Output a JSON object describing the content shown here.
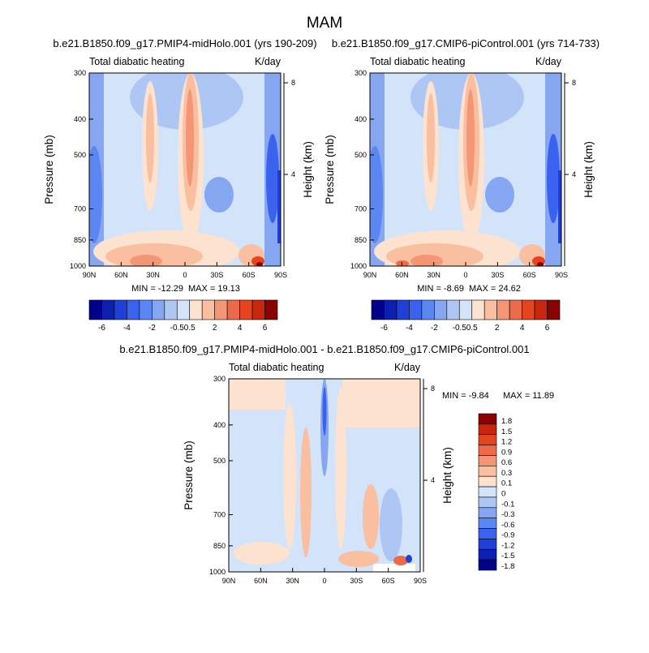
{
  "figure": {
    "season_title": "MAM"
  },
  "chart_data": [
    {
      "type": "heatmap",
      "title": "b.e21.B1850.f09_g17.PMIP4-midHolo.001 (yrs 190-209)",
      "left_subtitle": "Total diabatic heating",
      "right_subtitle": "K/day",
      "xlabel": "",
      "ylabel": "Pressure (mb)",
      "y2label": "Height (km)",
      "x_ticks": [
        "90N",
        "60N",
        "30N",
        "0",
        "30S",
        "60S",
        "90S"
      ],
      "y_ticks": [
        300,
        400,
        500,
        700,
        850,
        1000
      ],
      "y2_ticks": [
        "8",
        "4"
      ],
      "y_scale": "log",
      "ylim": [
        1000,
        300
      ],
      "min_label": "MIN = -12.29",
      "max_label": "MAX =  19.13",
      "min": -12.29,
      "max": 19.13,
      "colorbar_ticks": [
        "-6",
        "-4",
        "-2",
        "-0.5",
        "0.5",
        "2",
        "4",
        "6"
      ],
      "colorbar_orientation": "horizontal"
    },
    {
      "type": "heatmap",
      "title": "b.e21.B1850.f09_g17.CMIP6-piControl.001 (yrs 714-733)",
      "left_subtitle": "Total diabatic heating",
      "right_subtitle": "K/day",
      "xlabel": "",
      "ylabel": "Pressure (mb)",
      "y2label": "Height (km)",
      "x_ticks": [
        "90N",
        "60N",
        "30N",
        "0",
        "30S",
        "60S",
        "90S"
      ],
      "y_ticks": [
        300,
        400,
        500,
        700,
        850,
        1000
      ],
      "y2_ticks": [
        "8",
        "4"
      ],
      "y_scale": "log",
      "ylim": [
        1000,
        300
      ],
      "min_label": "MIN =  -8.69",
      "max_label": "MAX =  24.62",
      "min": -8.69,
      "max": 24.62,
      "colorbar_ticks": [
        "-6",
        "-4",
        "-2",
        "-0.5",
        "0.5",
        "2",
        "4",
        "6"
      ],
      "colorbar_orientation": "horizontal"
    },
    {
      "type": "heatmap",
      "title": "b.e21.B1850.f09_g17.PMIP4-midHolo.001 - b.e21.B1850.f09_g17.CMIP6-piControl.001",
      "left_subtitle": "Total diabatic heating",
      "right_subtitle": "K/day",
      "xlabel": "",
      "ylabel": "Pressure (mb)",
      "y2label": "Height (km)",
      "x_ticks": [
        "90N",
        "60N",
        "30N",
        "0",
        "30S",
        "60S",
        "90S"
      ],
      "y_ticks": [
        300,
        400,
        500,
        700,
        850,
        1000
      ],
      "y2_ticks": [
        "8",
        "4"
      ],
      "y_scale": "log",
      "ylim": [
        1000,
        300
      ],
      "min_label": "MIN =  -9.84",
      "max_label": "MAX =  11.89",
      "min": -9.84,
      "max": 11.89,
      "colorbar_ticks": [
        "1.8",
        "1.5",
        "1.2",
        "0.9",
        "0.6",
        "0.3",
        "0.1",
        "0",
        "-0.1",
        "-0.3",
        "-0.6",
        "-0.9",
        "-1.2",
        "-1.5",
        "-1.8"
      ],
      "colorbar_orientation": "vertical"
    }
  ],
  "colors": {
    "palette": [
      "#00008b",
      "#0d1fb0",
      "#1f3fd6",
      "#3a62ee",
      "#5c86f2",
      "#86a6f2",
      "#aec6f4",
      "#d3e3fa",
      "#fde2cf",
      "#f9bfa0",
      "#f49676",
      "#ec6a48",
      "#e5441f",
      "#c8260d",
      "#8b0000"
    ]
  }
}
